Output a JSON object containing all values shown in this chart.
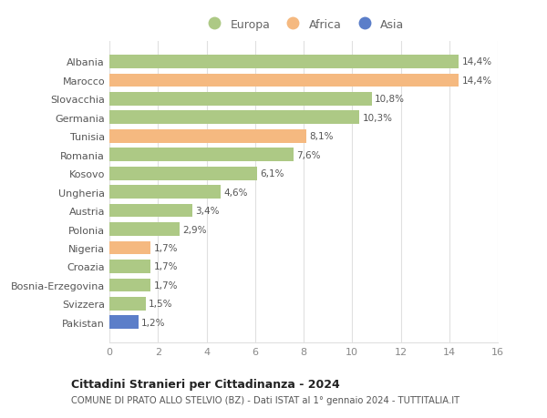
{
  "categories": [
    "Albania",
    "Marocco",
    "Slovacchia",
    "Germania",
    "Tunisia",
    "Romania",
    "Kosovo",
    "Ungheria",
    "Austria",
    "Polonia",
    "Nigeria",
    "Croazia",
    "Bosnia-Erzegovina",
    "Svizzera",
    "Pakistan"
  ],
  "values": [
    14.4,
    14.4,
    10.8,
    10.3,
    8.1,
    7.6,
    6.1,
    4.6,
    3.4,
    2.9,
    1.7,
    1.7,
    1.7,
    1.5,
    1.2
  ],
  "labels": [
    "14,4%",
    "14,4%",
    "10,8%",
    "10,3%",
    "8,1%",
    "7,6%",
    "6,1%",
    "4,6%",
    "3,4%",
    "2,9%",
    "1,7%",
    "1,7%",
    "1,7%",
    "1,5%",
    "1,2%"
  ],
  "continents": [
    "Europa",
    "Africa",
    "Europa",
    "Europa",
    "Africa",
    "Europa",
    "Europa",
    "Europa",
    "Europa",
    "Europa",
    "Africa",
    "Europa",
    "Europa",
    "Europa",
    "Asia"
  ],
  "colors": {
    "Europa": "#adc985",
    "Africa": "#f5b980",
    "Asia": "#5b7ec9"
  },
  "legend_order": [
    "Europa",
    "Africa",
    "Asia"
  ],
  "title": "Cittadini Stranieri per Cittadinanza - 2024",
  "subtitle": "COMUNE DI PRATO ALLO STELVIO (BZ) - Dati ISTAT al 1° gennaio 2024 - TUTTITALIA.IT",
  "xlim": [
    0,
    16
  ],
  "xticks": [
    0,
    2,
    4,
    6,
    8,
    10,
    12,
    14,
    16
  ],
  "background_color": "#ffffff",
  "grid_color": "#e0e0e0",
  "bar_height": 0.72
}
